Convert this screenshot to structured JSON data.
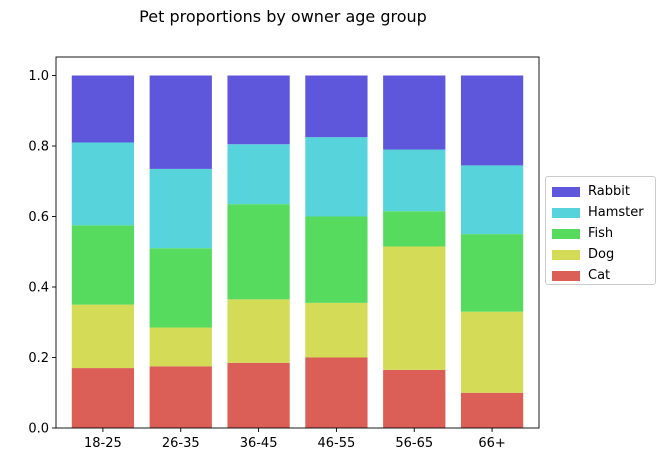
{
  "chart_data": {
    "type": "bar",
    "stacked": true,
    "title": "Pet proportions by owner age group",
    "xlabel": "",
    "ylabel": "",
    "ylim": [
      0,
      1.0
    ],
    "yticks": [
      "0.0",
      "0.2",
      "0.4",
      "0.6",
      "0.8",
      "1.0"
    ],
    "grid": false,
    "legend_position": "right",
    "categories": [
      "18-25",
      "26-35",
      "36-45",
      "46-55",
      "56-65",
      "66+"
    ],
    "series": [
      {
        "name": "Cat",
        "color": "#db5f57",
        "values": [
          0.17,
          0.175,
          0.185,
          0.2,
          0.165,
          0.1
        ]
      },
      {
        "name": "Dog",
        "color": "#d3db57",
        "values": [
          0.18,
          0.11,
          0.18,
          0.155,
          0.35,
          0.23
        ]
      },
      {
        "name": "Fish",
        "color": "#57db5f",
        "values": [
          0.225,
          0.225,
          0.27,
          0.245,
          0.1,
          0.22
        ]
      },
      {
        "name": "Hamster",
        "color": "#57d3db",
        "values": [
          0.235,
          0.225,
          0.17,
          0.225,
          0.175,
          0.195
        ]
      },
      {
        "name": "Rabbit",
        "color": "#5f57db",
        "values": [
          0.19,
          0.265,
          0.195,
          0.175,
          0.21,
          0.255
        ]
      }
    ]
  }
}
